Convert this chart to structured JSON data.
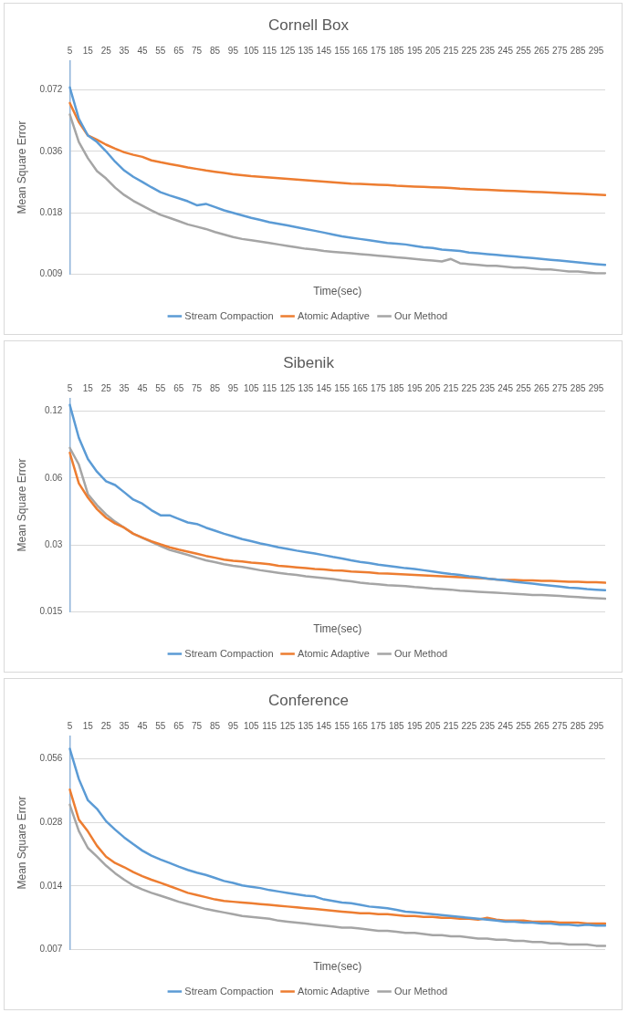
{
  "chart_data": [
    {
      "type": "line",
      "title": "Cornell Box",
      "xlabel": "Time(sec)",
      "ylabel": "Mean Square Error",
      "log": "y",
      "grid": "y",
      "legend": "bottom",
      "marker": "none",
      "line_style": "solid",
      "categories": [
        "5",
        null,
        "15",
        null,
        "25",
        null,
        "35",
        null,
        "45",
        null,
        "55",
        null,
        "65",
        null,
        "75",
        null,
        "85",
        null,
        "95",
        null,
        "105",
        null,
        "115",
        null,
        "125",
        null,
        "135",
        null,
        "145",
        null,
        "155",
        null,
        "165",
        null,
        "175",
        null,
        "185",
        null,
        "195",
        null,
        "205",
        null,
        "215",
        null,
        "225",
        null,
        "235",
        null,
        "245",
        null,
        "255",
        null,
        "265",
        null,
        "275",
        null,
        "285",
        null,
        "295",
        null
      ],
      "ylim": [
        0.009,
        0.1
      ],
      "yticks": [
        0.009,
        0.018,
        0.036,
        0.072
      ],
      "series": [
        {
          "name": "Stream Compaction",
          "color": "#5b9bd5",
          "values": [
            0.074,
            0.052,
            0.043,
            0.04,
            0.036,
            0.032,
            0.029,
            0.027,
            0.0255,
            0.024,
            0.0227,
            0.0219,
            0.0212,
            0.0205,
            0.0196,
            0.0199,
            0.0192,
            0.0185,
            0.018,
            0.0175,
            0.017,
            0.0166,
            0.0162,
            0.0159,
            0.0156,
            0.0153,
            0.015,
            0.0147,
            0.0144,
            0.0141,
            0.0138,
            0.0136,
            0.0134,
            0.0132,
            0.013,
            0.0128,
            0.0127,
            0.0126,
            0.0124,
            0.0122,
            0.0121,
            0.0119,
            0.0118,
            0.0117,
            0.0115,
            0.0114,
            0.0113,
            0.0112,
            0.0111,
            0.011,
            0.0109,
            0.0108,
            0.0107,
            0.0106,
            0.0105,
            0.0104,
            0.0103,
            0.0102,
            0.0101,
            0.01
          ]
        },
        {
          "name": "Atomic Adaptive",
          "color": "#ed7d31",
          "values": [
            0.062,
            0.05,
            0.043,
            0.041,
            0.0388,
            0.0371,
            0.0356,
            0.0346,
            0.0338,
            0.0325,
            0.0318,
            0.0312,
            0.0306,
            0.03,
            0.0295,
            0.029,
            0.0286,
            0.0282,
            0.0278,
            0.0275,
            0.0272,
            0.027,
            0.0268,
            0.0266,
            0.0264,
            0.0262,
            0.026,
            0.0258,
            0.0256,
            0.0254,
            0.0252,
            0.025,
            0.0249,
            0.0248,
            0.0247,
            0.0246,
            0.0244,
            0.0243,
            0.0242,
            0.0241,
            0.024,
            0.0239,
            0.0238,
            0.0236,
            0.0235,
            0.0234,
            0.0233,
            0.0232,
            0.0231,
            0.023,
            0.0229,
            0.0228,
            0.0227,
            0.0226,
            0.0225,
            0.0224,
            0.0223,
            0.0222,
            0.0221,
            0.022
          ]
        },
        {
          "name": "Our Method",
          "color": "#a5a5a5",
          "values": [
            0.0545,
            0.04,
            0.0333,
            0.0288,
            0.0265,
            0.0239,
            0.022,
            0.0206,
            0.0195,
            0.0185,
            0.0176,
            0.017,
            0.0164,
            0.0158,
            0.0154,
            0.015,
            0.0145,
            0.0141,
            0.0137,
            0.0134,
            0.0132,
            0.013,
            0.0128,
            0.0126,
            0.0124,
            0.0122,
            0.012,
            0.0119,
            0.0117,
            0.0116,
            0.0115,
            0.0114,
            0.0113,
            0.0112,
            0.0111,
            0.011,
            0.0109,
            0.0108,
            0.0107,
            0.0106,
            0.0105,
            0.0104,
            0.0107,
            0.0102,
            0.0101,
            0.01,
            0.0099,
            0.0099,
            0.0098,
            0.0097,
            0.0097,
            0.0096,
            0.0095,
            0.0095,
            0.0094,
            0.0093,
            0.0093,
            0.0092,
            0.0091,
            0.0091
          ]
        }
      ]
    },
    {
      "type": "line",
      "title": "Sibenik",
      "xlabel": "Time(sec)",
      "ylabel": "Mean Square Error",
      "log": "y",
      "grid": "y",
      "legend": "bottom",
      "marker": "none",
      "line_style": "solid",
      "categories": [
        "5",
        null,
        "15",
        null,
        "25",
        null,
        "35",
        null,
        "45",
        null,
        "55",
        null,
        "65",
        null,
        "75",
        null,
        "85",
        null,
        "95",
        null,
        "105",
        null,
        "115",
        null,
        "125",
        null,
        "135",
        null,
        "145",
        null,
        "155",
        null,
        "165",
        null,
        "175",
        null,
        "185",
        null,
        "195",
        null,
        "205",
        null,
        "215",
        null,
        "225",
        null,
        "235",
        null,
        "245",
        null,
        "255",
        null,
        "265",
        null,
        "275",
        null,
        "285",
        null,
        "295",
        null
      ],
      "ylim": [
        0.015,
        0.137
      ],
      "yticks": [
        0.015,
        0.03,
        0.06,
        0.12
      ],
      "series": [
        {
          "name": "Stream Compaction",
          "color": "#5b9bd5",
          "values": [
            0.128,
            0.091,
            0.073,
            0.064,
            0.058,
            0.0558,
            0.0518,
            0.048,
            0.046,
            0.043,
            0.0408,
            0.0408,
            0.0393,
            0.0379,
            0.0373,
            0.0359,
            0.0348,
            0.0337,
            0.0328,
            0.0319,
            0.0312,
            0.0305,
            0.0299,
            0.0293,
            0.0288,
            0.0283,
            0.0279,
            0.0275,
            0.027,
            0.0265,
            0.0261,
            0.0256,
            0.0252,
            0.0249,
            0.0245,
            0.0242,
            0.0239,
            0.0236,
            0.0234,
            0.0231,
            0.0228,
            0.0225,
            0.0222,
            0.022,
            0.0217,
            0.0215,
            0.0212,
            0.021,
            0.0208,
            0.0205,
            0.0203,
            0.0201,
            0.0199,
            0.0197,
            0.0195,
            0.0193,
            0.0192,
            0.019,
            0.0189,
            0.0188
          ]
        },
        {
          "name": "Atomic Adaptive",
          "color": "#ed7d31",
          "values": [
            0.078,
            0.0568,
            0.049,
            0.0435,
            0.0398,
            0.0375,
            0.0359,
            0.0337,
            0.0324,
            0.0312,
            0.0302,
            0.0293,
            0.0286,
            0.028,
            0.0274,
            0.0268,
            0.0263,
            0.0258,
            0.0255,
            0.0253,
            0.025,
            0.0248,
            0.0246,
            0.0242,
            0.024,
            0.0238,
            0.0236,
            0.0234,
            0.0233,
            0.0231,
            0.023,
            0.0228,
            0.0227,
            0.0226,
            0.0224,
            0.0223,
            0.0222,
            0.0221,
            0.022,
            0.0219,
            0.0218,
            0.0217,
            0.0216,
            0.0215,
            0.0214,
            0.0213,
            0.0212,
            0.021,
            0.0209,
            0.0209,
            0.0208,
            0.0208,
            0.0207,
            0.0207,
            0.0206,
            0.0205,
            0.0205,
            0.0204,
            0.0204,
            0.0203
          ]
        },
        {
          "name": "Our Method",
          "color": "#a5a5a5",
          "values": [
            0.082,
            0.069,
            0.0508,
            0.0453,
            0.0412,
            0.0382,
            0.0359,
            0.0337,
            0.0323,
            0.031,
            0.0297,
            0.0285,
            0.0278,
            0.0271,
            0.0263,
            0.0256,
            0.0251,
            0.0246,
            0.0242,
            0.0239,
            0.0235,
            0.0231,
            0.0228,
            0.0225,
            0.0222,
            0.022,
            0.0217,
            0.0215,
            0.0213,
            0.0211,
            0.0208,
            0.0206,
            0.0203,
            0.0201,
            0.02,
            0.0198,
            0.0197,
            0.0196,
            0.0194,
            0.0193,
            0.0191,
            0.019,
            0.0189,
            0.0187,
            0.0186,
            0.0185,
            0.0184,
            0.0183,
            0.0182,
            0.0181,
            0.018,
            0.0179,
            0.0179,
            0.0178,
            0.0177,
            0.0176,
            0.0175,
            0.0174,
            0.0173,
            0.0172
          ]
        }
      ]
    },
    {
      "type": "line",
      "title": "Conference",
      "xlabel": "Time(sec)",
      "ylabel": "Mean Square Error",
      "log": "y",
      "grid": "y",
      "legend": "bottom",
      "marker": "none",
      "line_style": "solid",
      "categories": [
        "5",
        null,
        "15",
        null,
        "25",
        null,
        "35",
        null,
        "45",
        null,
        "55",
        null,
        "65",
        null,
        "75",
        null,
        "85",
        null,
        "95",
        null,
        "105",
        null,
        "115",
        null,
        "125",
        null,
        "135",
        null,
        "145",
        null,
        "155",
        null,
        "165",
        null,
        "175",
        null,
        "185",
        null,
        "195",
        null,
        "205",
        null,
        "215",
        null,
        "225",
        null,
        "235",
        null,
        "245",
        null,
        "255",
        null,
        "265",
        null,
        "275",
        null,
        "285",
        null,
        "295",
        null
      ],
      "ylim": [
        0.007,
        0.072
      ],
      "yticks": [
        0.007,
        0.014,
        0.028,
        0.056
      ],
      "series": [
        {
          "name": "Stream Compaction",
          "color": "#5b9bd5",
          "values": [
            0.0626,
            0.045,
            0.0357,
            0.0325,
            0.0284,
            0.0259,
            0.0238,
            0.0221,
            0.0206,
            0.0195,
            0.0187,
            0.018,
            0.0173,
            0.0167,
            0.0162,
            0.0158,
            0.0153,
            0.0148,
            0.0145,
            0.0141,
            0.0139,
            0.0137,
            0.0134,
            0.0132,
            0.013,
            0.0128,
            0.0126,
            0.0125,
            0.0121,
            0.0119,
            0.0117,
            0.0116,
            0.0114,
            0.0112,
            0.0111,
            0.011,
            0.0108,
            0.0106,
            0.0105,
            0.0104,
            0.0103,
            0.0102,
            0.0101,
            0.01,
            0.0099,
            0.0098,
            0.0097,
            0.0096,
            0.0095,
            0.0095,
            0.0094,
            0.0094,
            0.0093,
            0.0093,
            0.0092,
            0.0092,
            0.0091,
            0.0092,
            0.0091,
            0.0091
          ]
        },
        {
          "name": "Atomic Adaptive",
          "color": "#ed7d31",
          "values": [
            0.0401,
            0.0289,
            0.0254,
            0.0217,
            0.0193,
            0.018,
            0.0172,
            0.0163,
            0.0156,
            0.015,
            0.0145,
            0.014,
            0.0135,
            0.013,
            0.0127,
            0.0124,
            0.0121,
            0.0119,
            0.0118,
            0.0117,
            0.0116,
            0.0115,
            0.0114,
            0.0113,
            0.0112,
            0.0111,
            0.011,
            0.0109,
            0.0108,
            0.0107,
            0.0106,
            0.0105,
            0.0104,
            0.0104,
            0.0103,
            0.0103,
            0.0102,
            0.0101,
            0.0101,
            0.01,
            0.01,
            0.0099,
            0.0099,
            0.0098,
            0.0098,
            0.0097,
            0.0099,
            0.0097,
            0.0096,
            0.0096,
            0.0096,
            0.0095,
            0.0095,
            0.0095,
            0.0094,
            0.0094,
            0.0094,
            0.0093,
            0.0093,
            0.0093
          ]
        },
        {
          "name": "Our Method",
          "color": "#a5a5a5",
          "values": [
            0.034,
            0.0255,
            0.0212,
            0.0193,
            0.0175,
            0.0161,
            0.015,
            0.0141,
            0.0135,
            0.013,
            0.0126,
            0.0122,
            0.0118,
            0.0115,
            0.0112,
            0.0109,
            0.0107,
            0.0105,
            0.0103,
            0.0101,
            0.01,
            0.0099,
            0.0098,
            0.0096,
            0.0095,
            0.0094,
            0.0093,
            0.0092,
            0.0091,
            0.009,
            0.0089,
            0.0089,
            0.0088,
            0.0087,
            0.0086,
            0.0086,
            0.0085,
            0.0084,
            0.0084,
            0.0083,
            0.0082,
            0.0082,
            0.0081,
            0.0081,
            0.008,
            0.0079,
            0.0079,
            0.0078,
            0.0078,
            0.0077,
            0.0077,
            0.0076,
            0.0076,
            0.0075,
            0.0075,
            0.0074,
            0.0074,
            0.0074,
            0.0073,
            0.0073
          ]
        }
      ]
    }
  ]
}
